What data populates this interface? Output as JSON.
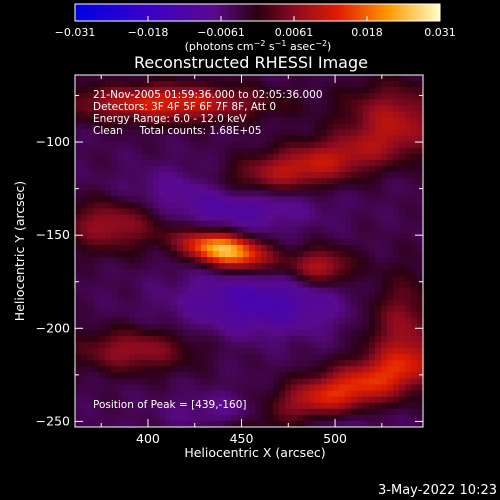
{
  "chart_data": {
    "type": "heatmap",
    "title": "Reconstructed RHESSI Image",
    "xlabel": "Heliocentric X (arcsec)",
    "ylabel": "Heliocentric Y (arcsec)",
    "xlim": [
      361,
      547
    ],
    "ylim": [
      -253,
      -64
    ],
    "xticks": [
      400,
      450,
      500
    ],
    "yticks": [
      -250,
      -200,
      -150,
      -100
    ],
    "colorbar": {
      "ticks": [
        "−0.031",
        "−0.018",
        "−0.0061",
        "0.0061",
        "0.018",
        "0.031"
      ],
      "min": -0.031,
      "max": 0.031,
      "unit_parts": [
        "(photons cm",
        "−2",
        " s",
        "−1",
        " asec",
        "−2",
        ")"
      ]
    },
    "info_lines": [
      "21-Nov-2005 01:59:36.000 to 02:05:36.000",
      "Detectors: 3F 4F 5F 6F 7F 8F, Att 0",
      "Energy Range: 6.0 - 12.0 keV",
      "Clean     Total counts: 1.68E+05"
    ],
    "peak_label": "Position of Peak = [439,-160]",
    "peak": [
      439,
      -160
    ],
    "peak_value": 0.031,
    "sources": [
      {
        "x": 441,
        "y": -158,
        "sx": 16,
        "sy": 6,
        "amp": 0.031,
        "angle": -12
      },
      {
        "x": 492,
        "y": -167,
        "sx": 12,
        "sy": 7,
        "amp": 0.014,
        "angle": 0
      },
      {
        "x": 476,
        "y": -116,
        "sx": 45,
        "sy": 9,
        "amp": 0.016,
        "angle": 15
      },
      {
        "x": 410,
        "y": -79,
        "sx": 35,
        "sy": 7,
        "amp": 0.017,
        "angle": 0
      },
      {
        "x": 494,
        "y": -238,
        "sx": 46,
        "sy": 9,
        "amp": 0.02,
        "angle": 20
      },
      {
        "x": 380,
        "y": -144,
        "sx": 18,
        "sy": 10,
        "amp": 0.011,
        "angle": 0
      },
      {
        "x": 392,
        "y": -212,
        "sx": 22,
        "sy": 8,
        "amp": 0.011,
        "angle": 0
      },
      {
        "x": 530,
        "y": -85,
        "sx": 18,
        "sy": 12,
        "amp": 0.011,
        "angle": 0
      },
      {
        "x": 535,
        "y": -200,
        "sx": 13,
        "sy": 20,
        "amp": 0.01,
        "angle": 0
      },
      {
        "x": 437,
        "y": -131,
        "sx": 30,
        "sy": 10,
        "amp": -0.015,
        "angle": 0
      },
      {
        "x": 460,
        "y": -186,
        "sx": 30,
        "sy": 12,
        "amp": -0.01,
        "angle": 0
      },
      {
        "x": 466,
        "y": -248,
        "sx": 30,
        "sy": 8,
        "amp": -0.012,
        "angle": 0
      }
    ],
    "baseline": -0.0035
  },
  "footer_timestamp": "3-May-2022 10:23"
}
